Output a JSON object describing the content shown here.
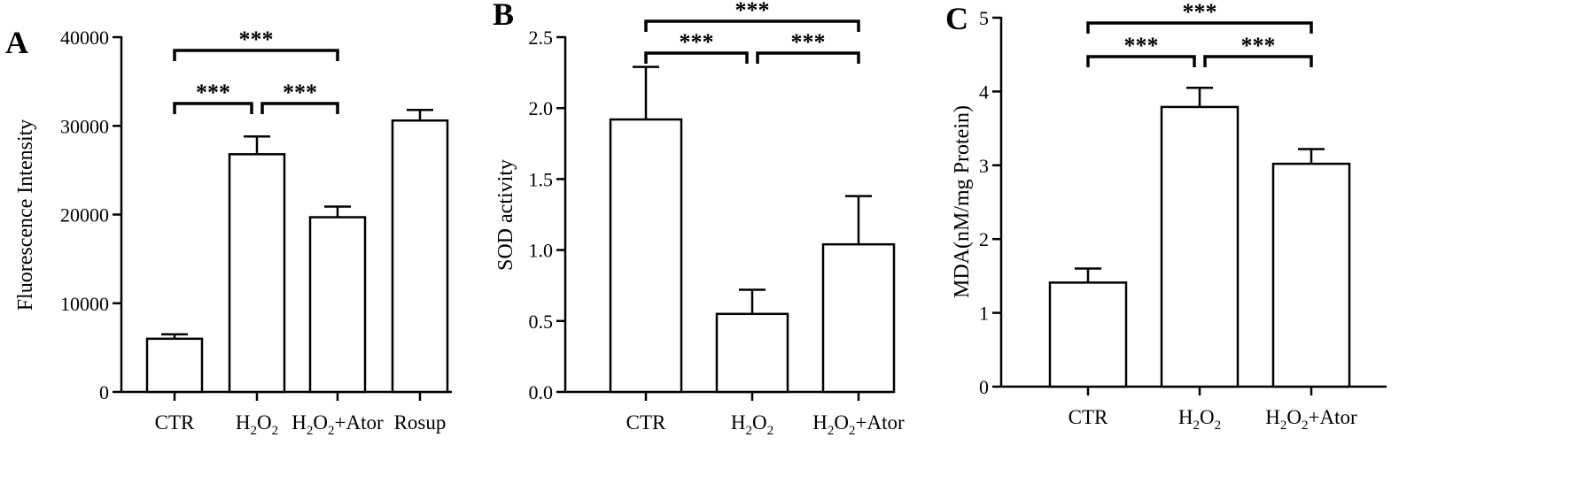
{
  "chart_data": [
    {
      "panel": "A",
      "type": "bar",
      "ylabel": "Fluorescence Intensity",
      "ylim": [
        0,
        40000
      ],
      "yticks": [
        0,
        10000,
        20000,
        30000,
        40000
      ],
      "categories": [
        {
          "base": "CTR",
          "sub": "",
          "rest": ""
        },
        {
          "base": "H",
          "sub": "2",
          "rest": "O",
          "sub2": "2",
          "rest2": ""
        },
        {
          "base": "H",
          "sub": "2",
          "rest": "O",
          "sub2": "2",
          "rest2": "+Ator"
        },
        {
          "base": "Rosup",
          "sub": "",
          "rest": ""
        }
      ],
      "values": [
        6000,
        26800,
        19700,
        30600
      ],
      "errors": [
        500,
        2000,
        1200,
        1200
      ],
      "significance": [
        {
          "from": 0,
          "to": 1,
          "label": "***",
          "level": 0
        },
        {
          "from": 1,
          "to": 2,
          "label": "***",
          "level": 0
        },
        {
          "from": 0,
          "to": 2,
          "label": "***",
          "level": 1
        }
      ]
    },
    {
      "panel": "B",
      "type": "bar",
      "ylabel": "SOD activity",
      "ylim": [
        0,
        2.5
      ],
      "yticks": [
        "0.0",
        "0.5",
        "1.0",
        "1.5",
        "2.0",
        "2.5"
      ],
      "categories": [
        {
          "base": "CTR",
          "sub": "",
          "rest": ""
        },
        {
          "base": "H",
          "sub": "2",
          "rest": "O",
          "sub2": "2",
          "rest2": ""
        },
        {
          "base": "H",
          "sub": "2",
          "rest": "O",
          "sub2": "2",
          "rest2": "+Ator"
        }
      ],
      "values": [
        1.92,
        0.55,
        1.04
      ],
      "errors": [
        0.37,
        0.17,
        0.34
      ],
      "significance": [
        {
          "from": 0,
          "to": 1,
          "label": "***",
          "level": 0
        },
        {
          "from": 1,
          "to": 2,
          "label": "***",
          "level": 0
        },
        {
          "from": 0,
          "to": 2,
          "label": "***",
          "level": 1
        }
      ]
    },
    {
      "panel": "C",
      "type": "bar",
      "ylabel": "MDA(nM/mg Protein)",
      "ylim": [
        0,
        5
      ],
      "yticks": [
        0,
        1,
        2,
        3,
        4,
        5
      ],
      "categories": [
        {
          "base": "CTR",
          "sub": "",
          "rest": ""
        },
        {
          "base": "H",
          "sub": "2",
          "rest": "O",
          "sub2": "2",
          "rest2": ""
        },
        {
          "base": "H",
          "sub": "2",
          "rest": "O",
          "sub2": "2",
          "rest2": "+Ator"
        }
      ],
      "values": [
        1.41,
        3.79,
        3.02
      ],
      "errors": [
        0.19,
        0.26,
        0.2
      ],
      "significance": [
        {
          "from": 0,
          "to": 1,
          "label": "***",
          "level": 0
        },
        {
          "from": 1,
          "to": 2,
          "label": "***",
          "level": 0
        },
        {
          "from": 0,
          "to": 2,
          "label": "***",
          "level": 1
        }
      ]
    }
  ]
}
